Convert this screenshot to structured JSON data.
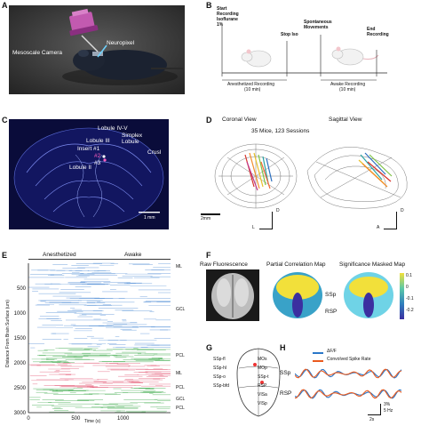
{
  "panels": {
    "A": {
      "letter": "A",
      "labels": {
        "camera": "Mesoscale Camera",
        "probe": "Neuropixel"
      }
    },
    "B": {
      "letter": "B",
      "events": [
        "Start Recording Isoflurane 1%",
        "Stop Iso",
        "Spontaneous Movements",
        "End Recording"
      ],
      "phases": [
        {
          "name": "Anesthetized Recording",
          "duration": "(10 min)"
        },
        {
          "name": "Awake Recording",
          "duration": "(10 min)"
        }
      ]
    },
    "C": {
      "letter": "C",
      "regions": [
        "Lobule IV-V",
        "Simplex Lobule",
        "Lobule III",
        "Insert #1",
        "#2",
        "#3",
        "Lobule II",
        "CrusI"
      ],
      "scalebar": "1 mm"
    },
    "D": {
      "letter": "D",
      "views": [
        "Coronal View",
        "Sagittal View"
      ],
      "summary": "35 Mice, 123 Sessions",
      "scalebar": "2mm",
      "axes_left": [
        "D",
        "L"
      ],
      "axes_right": [
        "D",
        "A"
      ]
    },
    "E": {
      "letter": "E",
      "states": [
        "Anesthetized",
        "Awake"
      ],
      "ylabel": "Distance From Brain Surface (um)",
      "xlabel": "Time (s)",
      "layers": [
        "ML",
        "GCL",
        "PCL",
        "ML",
        "PCL",
        "GCL",
        "PCL"
      ]
    },
    "F": {
      "letter": "F",
      "titles": [
        "Raw Fluorescence",
        "Partial Correlation Map",
        "Significance Masked Map"
      ],
      "region_labels": [
        "SSp",
        "RSP"
      ]
    },
    "G": {
      "letter": "G",
      "left_labels": [
        "SSp-fl",
        "SSp-hl",
        "SSp-o",
        "SSp-bfd"
      ],
      "right_labels": [
        "MOs",
        "MOp",
        "SSp-t",
        "RSP",
        "VISa",
        "VISp"
      ]
    },
    "H": {
      "letter": "H",
      "legend": [
        "ΔF/F",
        "Convolved Spike Rate"
      ],
      "rows": [
        "SSp",
        "RSP"
      ],
      "scale": [
        "3%",
        "5 Hz",
        "2s"
      ]
    }
  },
  "chart_data": [
    {
      "type": "scatter",
      "title": "",
      "xlabel": "Time (s)",
      "ylabel": "Distance From Brain Surface (um)",
      "xlim": [
        0,
        1500
      ],
      "ylim": [
        3000,
        0
      ],
      "xticks": [
        0,
        500,
        1000
      ],
      "yticks": [
        500,
        1000,
        1500,
        2000,
        2500,
        3000
      ]
    },
    {
      "type": "heatmap",
      "title": "",
      "colorbar_ticks": [
        "0.1",
        "0",
        "-0.1",
        "-0.2"
      ],
      "colorbar_range": [
        -0.2,
        0.15
      ]
    }
  ],
  "colors": {
    "panel_a_bg": "#3d3d3d",
    "panel_c_bg": "#0a0c3a",
    "trace_blue": "#2a77c9",
    "trace_orange": "#ea5a1e",
    "raster_green": "#1a9a2a",
    "raster_red": "#e04060"
  }
}
